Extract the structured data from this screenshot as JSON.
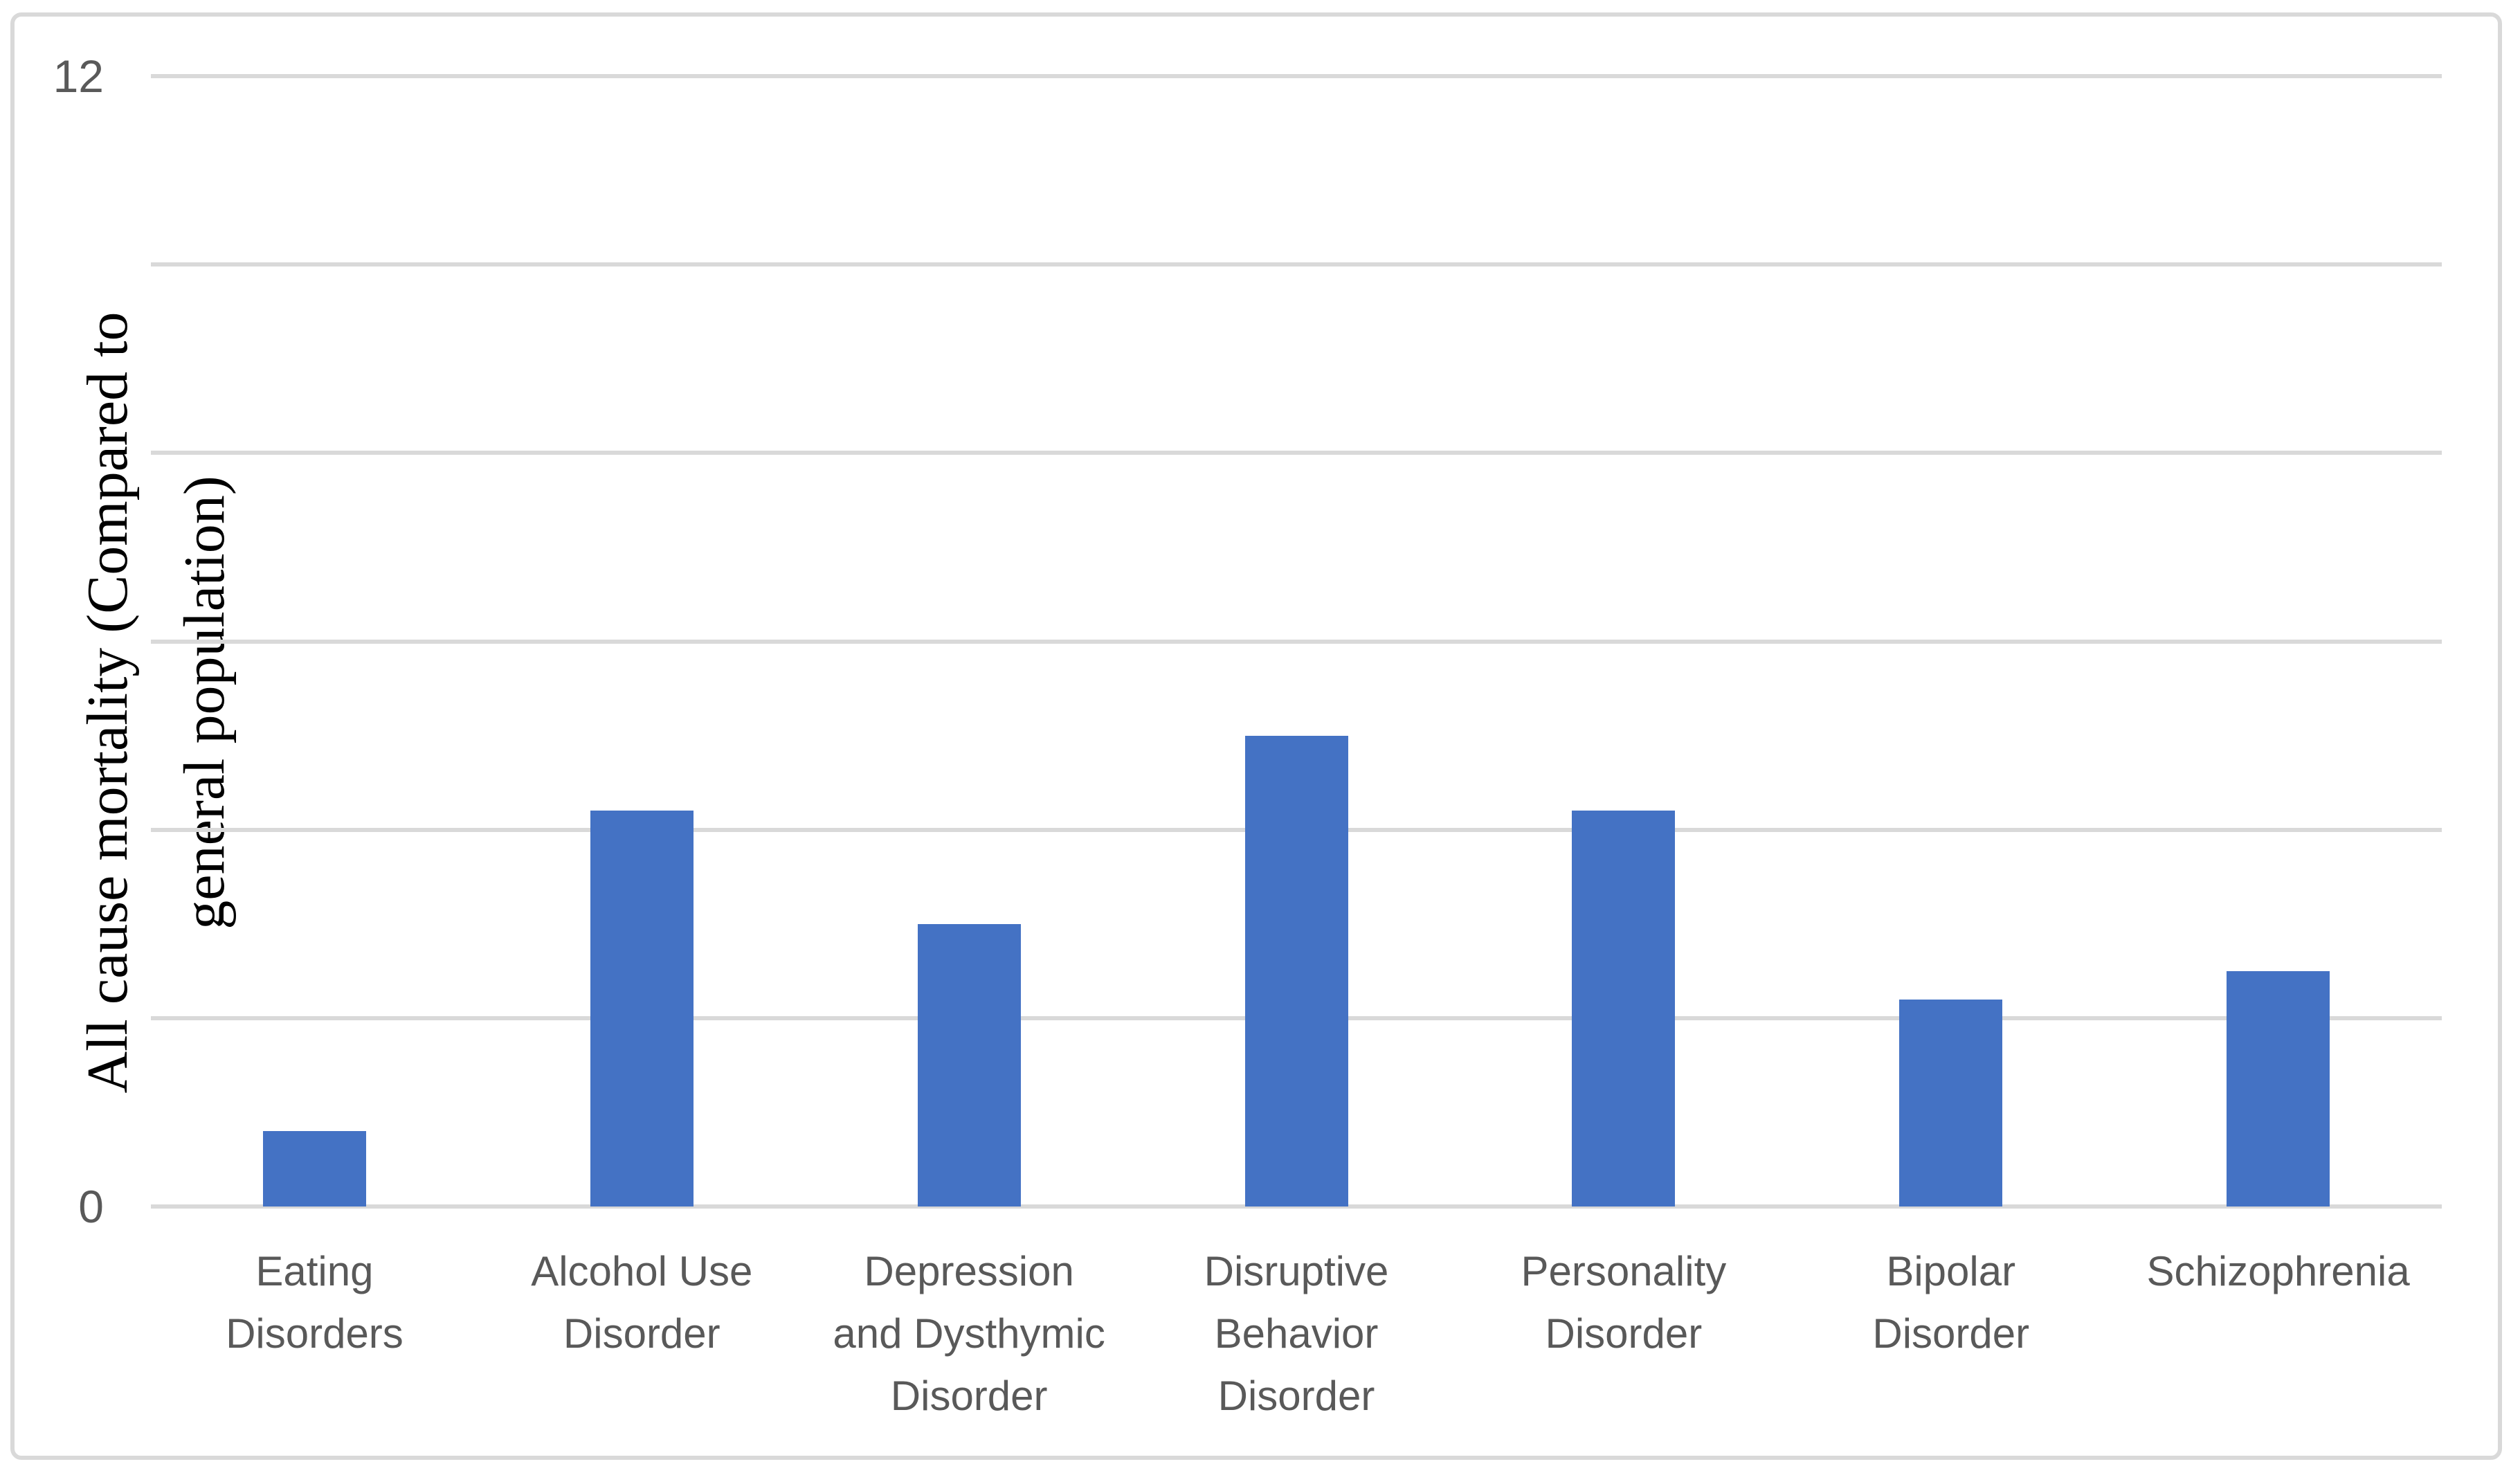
{
  "chart_data": {
    "type": "bar",
    "title": "",
    "xlabel": "",
    "ylabel": "All cause mortality (Compared to general population)",
    "ylabel_lines": [
      "All cause mortality (Compared to",
      "general population)"
    ],
    "categories": [
      "Eating Disorders",
      "Alcohol Use Disorder",
      "Depression and Dysthymic Disorder",
      "Disruptive Behavior Disorder",
      "Personality Disorder",
      "Bipolar Disorder",
      "Schizophrenia"
    ],
    "category_lines": [
      [
        "Eating",
        "Disorders"
      ],
      [
        "Alcohol Use",
        "Disorder"
      ],
      [
        "Depression",
        "and Dysthymic",
        "Disorder"
      ],
      [
        "Disruptive",
        "Behavior",
        "Disorder"
      ],
      [
        "Personality",
        "Disorder"
      ],
      [
        "Bipolar",
        "Disorder"
      ],
      [
        "Schizophrenia"
      ]
    ],
    "values": [
      0.8,
      4.2,
      3.0,
      5.0,
      4.2,
      2.2,
      2.5
    ],
    "ylim": [
      0,
      12
    ],
    "gridline_step": 2,
    "visible_ytick_labels": [
      {
        "value": 12,
        "label": "12"
      },
      {
        "value": 0,
        "label": "0"
      }
    ],
    "legend_position": "none",
    "grid": "horizontal",
    "bar_color": "#4472C4",
    "gridline_color": "#D9D9D9",
    "border_color": "#D9D9D9",
    "axis_text_color": "#595959",
    "ylabel_text_color": "#000000"
  }
}
